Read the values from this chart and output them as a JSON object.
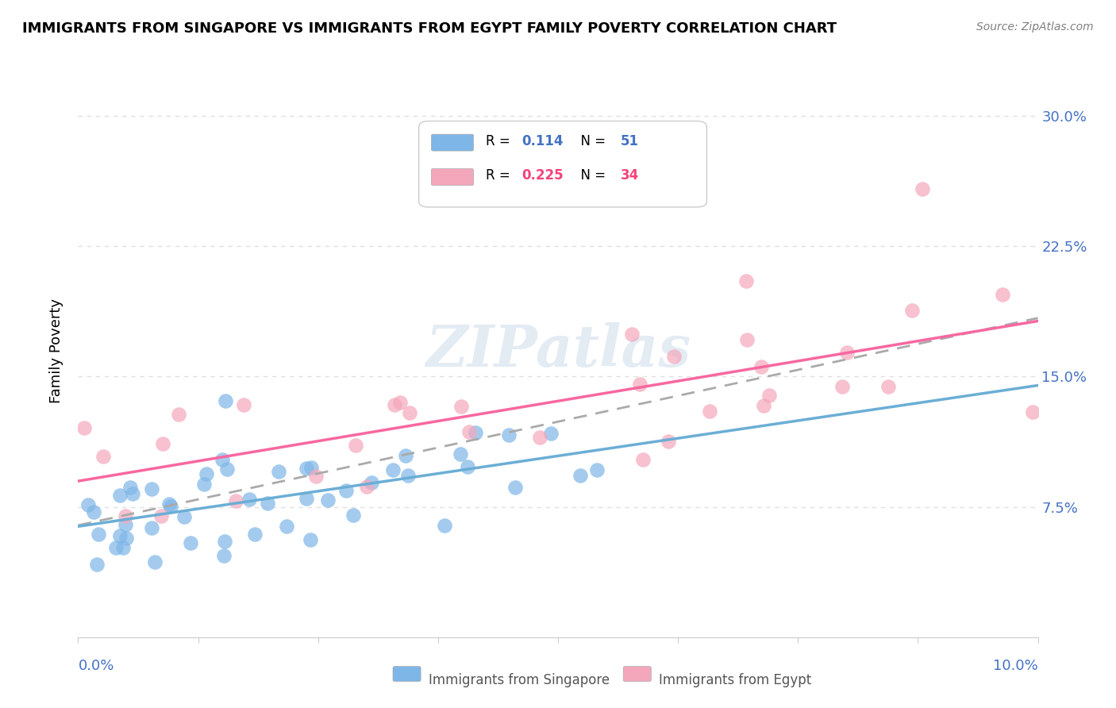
{
  "title": "IMMIGRANTS FROM SINGAPORE VS IMMIGRANTS FROM EGYPT FAMILY POVERTY CORRELATION CHART",
  "source": "Source: ZipAtlas.com",
  "ylabel": "Family Poverty",
  "ytick_labels": [
    "7.5%",
    "15.0%",
    "22.5%",
    "30.0%"
  ],
  "ytick_values": [
    0.075,
    0.15,
    0.225,
    0.3
  ],
  "xlim": [
    0.0,
    0.1
  ],
  "ylim": [
    0.0,
    0.33
  ],
  "color_singapore": "#7eb6e8",
  "color_egypt": "#f4a7bb",
  "color_singapore_line": "#6baed6",
  "color_egypt_line": "#f768a1",
  "color_dashed": "#aaaaaa",
  "watermark": "ZIPatlas",
  "background_color": "#ffffff",
  "grid_color": "#e0e0e0"
}
